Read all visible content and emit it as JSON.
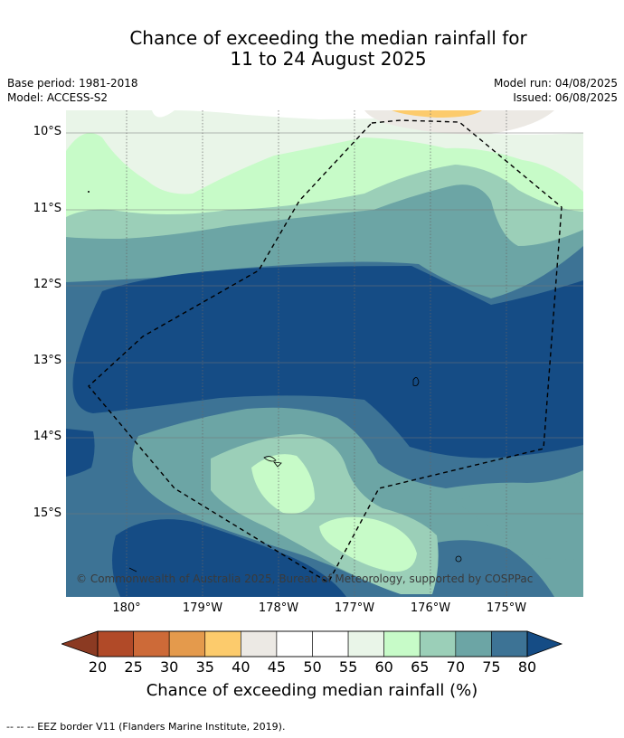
{
  "title": {
    "line1": "Chance of exceeding the median rainfall for",
    "line2": "11 to 24 August 2025"
  },
  "meta_left": {
    "base_period": "Base period: 1981-2018",
    "model": "Model: ACCESS-S2"
  },
  "meta_right": {
    "model_run": "Model run: 04/08/2025",
    "issued": "Issued: 06/08/2025"
  },
  "latitude_labels": [
    "10°S",
    "11°S",
    "12°S",
    "13°S",
    "14°S",
    "15°S"
  ],
  "longitude_labels": [
    "180°",
    "179°W",
    "178°W",
    "177°W",
    "176°W",
    "175°W"
  ],
  "copyright": "© Commonwealth of Australia 2025, Bureau of Meteorology, supported by COSPPac",
  "colorbar": {
    "label": "Chance of exceeding median rainfall (%)",
    "ticks": [
      "20",
      "25",
      "30",
      "35",
      "40",
      "45",
      "50",
      "55",
      "60",
      "65",
      "70",
      "75",
      "80"
    ],
    "colors": {
      "lt20": "#8b3a22",
      "20-25": "#b14a28",
      "25-30": "#cd6a38",
      "30-35": "#e49a4c",
      "35-40": "#fccb6c",
      "40-45": "#ece9e4",
      "45-50": "#ffffff",
      "50-55": "#ffffff",
      "55-60": "#e9f5e8",
      "60-65": "#c7fbc8",
      "65-70": "#9bcfb8",
      "70-75": "#6ca5a5",
      "75-80": "#3d7395",
      "gt80": "#154c85"
    }
  },
  "legend": "--  --  -- EEZ border V11 (Flanders Marine Institute, 2019)."
}
